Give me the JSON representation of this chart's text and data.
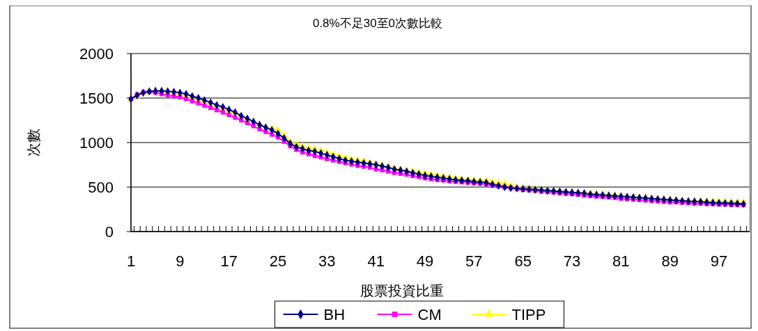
{
  "chart_data": {
    "type": "line",
    "title": "0.8%不足30至0次數比較",
    "xlabel": "股票投資比重",
    "ylabel": "次數",
    "categories": [
      "1",
      null,
      null,
      null,
      null,
      null,
      null,
      null,
      "9",
      null,
      null,
      null,
      null,
      null,
      null,
      null,
      "17",
      null,
      null,
      null,
      null,
      null,
      null,
      null,
      "25",
      null,
      null,
      null,
      null,
      null,
      null,
      null,
      "33",
      null,
      null,
      null,
      null,
      null,
      null,
      null,
      "41",
      null,
      null,
      null,
      null,
      null,
      null,
      null,
      "49",
      null,
      null,
      null,
      null,
      null,
      null,
      null,
      "57",
      null,
      null,
      null,
      null,
      null,
      null,
      null,
      "65",
      null,
      null,
      null,
      null,
      null,
      null,
      null,
      "73",
      null,
      null,
      null,
      null,
      null,
      null,
      null,
      "81",
      null,
      null,
      null,
      null,
      null,
      null,
      null,
      "89",
      null,
      null,
      null,
      null,
      null,
      null,
      null,
      "97",
      null,
      null,
      null,
      null
    ],
    "ylim": [
      0,
      2000
    ],
    "yticks": [
      0,
      500,
      1000,
      1500,
      2000
    ],
    "grid": "y",
    "legend": "bottom",
    "line_style": "solid",
    "series": [
      {
        "name": "BH",
        "color": "#000080",
        "marker": "diamond",
        "values": [
          1490,
          1530,
          1560,
          1575,
          1580,
          1580,
          1575,
          1570,
          1560,
          1545,
          1520,
          1500,
          1475,
          1450,
          1420,
          1400,
          1370,
          1340,
          1300,
          1270,
          1235,
          1200,
          1170,
          1140,
          1100,
          1050,
          990,
          950,
          930,
          910,
          900,
          880,
          860,
          840,
          820,
          800,
          790,
          780,
          770,
          760,
          750,
          735,
          720,
          700,
          690,
          675,
          660,
          645,
          630,
          620,
          610,
          600,
          590,
          580,
          575,
          570,
          560,
          555,
          550,
          530,
          515,
          500,
          490,
          485,
          480,
          475,
          470,
          465,
          460,
          455,
          450,
          445,
          440,
          435,
          430,
          420,
          415,
          410,
          405,
          400,
          395,
          390,
          385,
          380,
          375,
          370,
          365,
          360,
          355,
          350,
          345,
          340,
          338,
          335,
          330,
          325,
          322,
          320,
          318,
          315,
          310
        ]
      },
      {
        "name": "CM",
        "color": "#ff00ff",
        "marker": "square",
        "values": [
          1490,
          1540,
          1565,
          1570,
          1560,
          1545,
          1530,
          1520,
          1510,
          1490,
          1465,
          1440,
          1415,
          1390,
          1365,
          1340,
          1310,
          1280,
          1250,
          1220,
          1185,
          1150,
          1120,
          1090,
          1060,
          1010,
          960,
          920,
          890,
          870,
          850,
          835,
          815,
          800,
          785,
          770,
          755,
          740,
          730,
          720,
          700,
          690,
          675,
          660,
          650,
          640,
          625,
          615,
          600,
          590,
          580,
          575,
          565,
          560,
          555,
          550,
          545,
          540,
          530,
          520,
          510,
          500,
          490,
          480,
          470,
          465,
          460,
          450,
          445,
          440,
          430,
          425,
          420,
          415,
          405,
          400,
          395,
          390,
          385,
          380,
          370,
          365,
          360,
          355,
          350,
          345,
          340,
          335,
          330,
          330,
          325,
          320,
          315,
          315,
          310,
          310,
          305,
          305,
          300,
          300,
          300
        ]
      },
      {
        "name": "TIPP",
        "color": "#ffff00",
        "marker": "triangle",
        "values": [
          1480,
          1520,
          1555,
          1565,
          1580,
          1575,
          1565,
          1550,
          1535,
          1520,
          1495,
          1470,
          1445,
          1420,
          1400,
          1380,
          1350,
          1320,
          1290,
          1260,
          1230,
          1200,
          1175,
          1160,
          1140,
          1080,
          1010,
          980,
          960,
          940,
          930,
          910,
          890,
          870,
          850,
          830,
          815,
          800,
          790,
          775,
          760,
          745,
          730,
          715,
          700,
          690,
          675,
          665,
          655,
          645,
          630,
          620,
          610,
          600,
          590,
          585,
          580,
          575,
          570,
          560,
          550,
          540,
          520,
          500,
          490,
          485,
          480,
          475,
          470,
          460,
          455,
          450,
          445,
          440,
          435,
          430,
          425,
          420,
          415,
          410,
          400,
          395,
          390,
          385,
          380,
          375,
          370,
          365,
          360,
          355,
          352,
          350,
          348,
          345,
          342,
          340,
          338,
          335,
          332,
          330,
          328
        ]
      }
    ]
  }
}
